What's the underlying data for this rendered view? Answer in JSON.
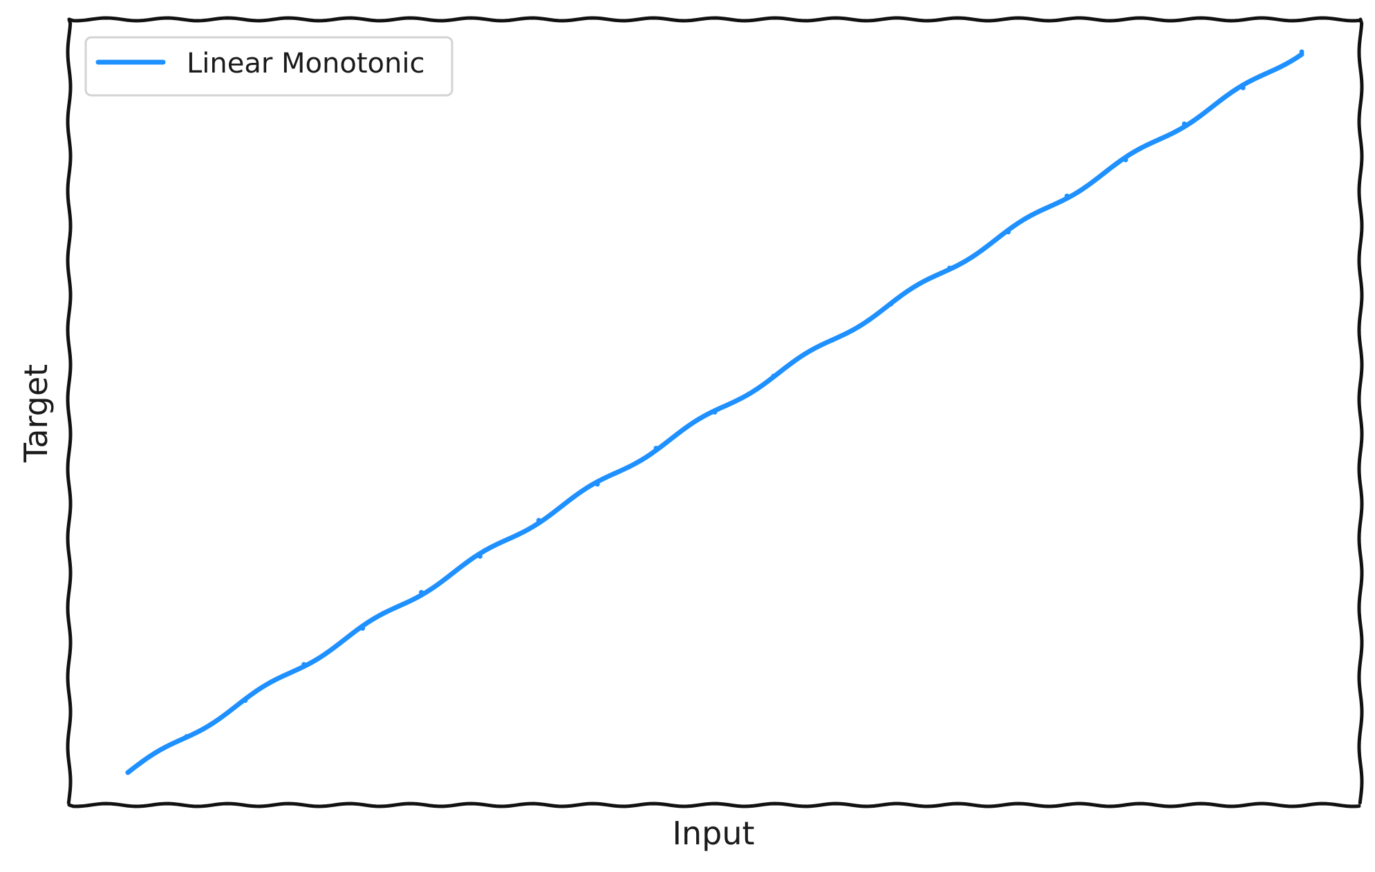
{
  "chart_data": {
    "type": "line",
    "title": "",
    "xlabel": "Input",
    "ylabel": "Target",
    "xticks": [],
    "yticks": [],
    "xlim": [
      0,
      1
    ],
    "ylim": [
      -0.045,
      1.045
    ],
    "grid": false,
    "legend_position": "top-left",
    "series": [
      {
        "name": "Linear Monotonic",
        "color": "#1e90ff",
        "x": [
          0,
          0.05,
          0.1,
          0.15,
          0.2,
          0.25,
          0.3,
          0.35,
          0.4,
          0.45,
          0.5,
          0.55,
          0.6,
          0.65,
          0.7,
          0.75,
          0.8,
          0.85,
          0.9,
          0.95,
          1.0
        ],
        "y": [
          0,
          0.05,
          0.1,
          0.15,
          0.2,
          0.25,
          0.3,
          0.35,
          0.4,
          0.45,
          0.5,
          0.55,
          0.6,
          0.65,
          0.7,
          0.75,
          0.8,
          0.85,
          0.9,
          0.95,
          1.0
        ]
      }
    ]
  }
}
